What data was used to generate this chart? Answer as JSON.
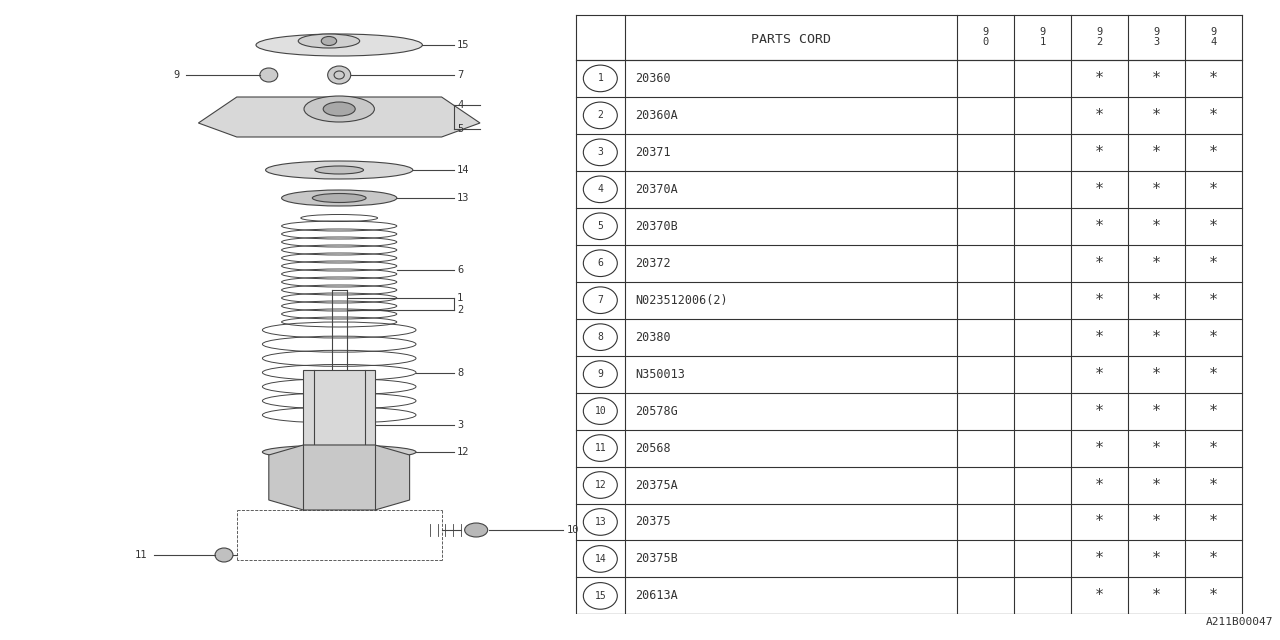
{
  "bg_color": "#ffffff",
  "fig_width": 12.8,
  "fig_height": 6.4,
  "watermark": "A211B00047",
  "table": {
    "header_parts": "PARTS CORD",
    "years": [
      "9\n0",
      "9\n1",
      "9\n2",
      "9\n3",
      "9\n4"
    ],
    "rows": [
      {
        "num": 1,
        "code": "20360",
        "marks": [
          false,
          false,
          true,
          true,
          true
        ]
      },
      {
        "num": 2,
        "code": "20360A",
        "marks": [
          false,
          false,
          true,
          true,
          true
        ]
      },
      {
        "num": 3,
        "code": "20371",
        "marks": [
          false,
          false,
          true,
          true,
          true
        ]
      },
      {
        "num": 4,
        "code": "20370A",
        "marks": [
          false,
          false,
          true,
          true,
          true
        ]
      },
      {
        "num": 5,
        "code": "20370B",
        "marks": [
          false,
          false,
          true,
          true,
          true
        ]
      },
      {
        "num": 6,
        "code": "20372",
        "marks": [
          false,
          false,
          true,
          true,
          true
        ]
      },
      {
        "num": 7,
        "code": "N023512006(2)",
        "marks": [
          false,
          false,
          true,
          true,
          true
        ]
      },
      {
        "num": 8,
        "code": "20380",
        "marks": [
          false,
          false,
          true,
          true,
          true
        ]
      },
      {
        "num": 9,
        "code": "N350013",
        "marks": [
          false,
          false,
          true,
          true,
          true
        ]
      },
      {
        "num": 10,
        "code": "20578G",
        "marks": [
          false,
          false,
          true,
          true,
          true
        ]
      },
      {
        "num": 11,
        "code": "20568",
        "marks": [
          false,
          false,
          true,
          true,
          true
        ]
      },
      {
        "num": 12,
        "code": "20375A",
        "marks": [
          false,
          false,
          true,
          true,
          true
        ]
      },
      {
        "num": 13,
        "code": "20375",
        "marks": [
          false,
          false,
          true,
          true,
          true
        ]
      },
      {
        "num": 14,
        "code": "20375B",
        "marks": [
          false,
          false,
          true,
          true,
          true
        ]
      },
      {
        "num": 15,
        "code": "20613A",
        "marks": [
          false,
          false,
          true,
          true,
          true
        ]
      }
    ]
  }
}
